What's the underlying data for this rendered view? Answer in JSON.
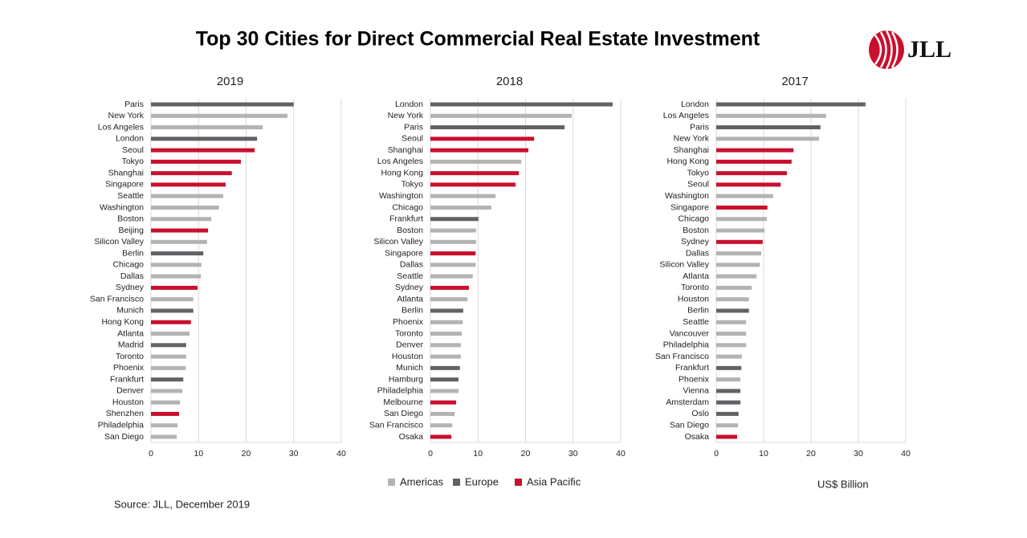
{
  "title": "Top 30 Cities for Direct Commercial Real Estate Investment",
  "logo": "JLL",
  "source": "Source: JLL, December 2019",
  "unit_label": "US$ Billion",
  "legend": [
    {
      "name": "Americas",
      "color": "#b3b3b3"
    },
    {
      "name": "Europe",
      "color": "#616265"
    },
    {
      "name": "Asia Pacific",
      "color": "#c8102e"
    }
  ],
  "chart_data": [
    {
      "type": "bar",
      "orientation": "horizontal",
      "title": "2019",
      "categories": [
        "Paris",
        "New York",
        "Los Angeles",
        "London",
        "Seoul",
        "Tokyo",
        "Shanghai",
        "Singapore",
        "Seattle",
        "Washington",
        "Boston",
        "Beijing",
        "Silicon Valley",
        "Berlin",
        "Chicago",
        "Dallas",
        "Sydney",
        "San Francisco",
        "Munich",
        "Hong Kong",
        "Atlanta",
        "Madrid",
        "Toronto",
        "Phoenix",
        "Frankfurt",
        "Denver",
        "Houston",
        "Shenzhen",
        "Philadelphia",
        "San Diego"
      ],
      "values": [
        30.0,
        28.7,
        23.5,
        22.3,
        21.8,
        18.9,
        17.0,
        15.7,
        15.2,
        14.3,
        12.7,
        12.0,
        11.8,
        11.0,
        10.6,
        10.5,
        9.8,
        8.9,
        8.9,
        8.4,
        8.1,
        7.4,
        7.4,
        7.3,
        6.8,
        6.6,
        6.1,
        5.9,
        5.6,
        5.4
      ],
      "colors": [
        "#616265",
        "#b3b3b3",
        "#b3b3b3",
        "#616265",
        "#c8102e",
        "#c8102e",
        "#c8102e",
        "#c8102e",
        "#b3b3b3",
        "#b3b3b3",
        "#b3b3b3",
        "#c8102e",
        "#b3b3b3",
        "#616265",
        "#b3b3b3",
        "#b3b3b3",
        "#c8102e",
        "#b3b3b3",
        "#616265",
        "#c8102e",
        "#b3b3b3",
        "#616265",
        "#b3b3b3",
        "#b3b3b3",
        "#616265",
        "#b3b3b3",
        "#b3b3b3",
        "#c8102e",
        "#b3b3b3",
        "#b3b3b3"
      ],
      "xlim": [
        0,
        40
      ],
      "xticks": [
        0,
        10,
        20,
        30,
        40
      ],
      "grid": true
    },
    {
      "type": "bar",
      "orientation": "horizontal",
      "title": "2018",
      "categories": [
        "London",
        "New York",
        "Paris",
        "Seoul",
        "Shanghai",
        "Los Angeles",
        "Hong Kong",
        "Tokyo",
        "Washington",
        "Chicago",
        "Frankfurt",
        "Boston",
        "Silicon Valley",
        "Singapore",
        "Dallas",
        "Seattle",
        "Sydney",
        "Atlanta",
        "Berlin",
        "Phoenix",
        "Toronto",
        "Denver",
        "Houston",
        "Munich",
        "Hamburg",
        "Philadelphia",
        "Melbourne",
        "San Diego",
        "San Francisco",
        "Osaka"
      ],
      "values": [
        38.3,
        29.7,
        28.2,
        21.8,
        20.6,
        19.1,
        18.6,
        17.9,
        13.7,
        12.8,
        10.1,
        9.6,
        9.6,
        9.5,
        9.5,
        8.9,
        8.1,
        7.8,
        6.9,
        6.8,
        6.6,
        6.4,
        6.4,
        6.2,
        5.9,
        5.9,
        5.4,
        5.1,
        4.6,
        4.4
      ],
      "colors": [
        "#616265",
        "#b3b3b3",
        "#616265",
        "#c8102e",
        "#c8102e",
        "#b3b3b3",
        "#c8102e",
        "#c8102e",
        "#b3b3b3",
        "#b3b3b3",
        "#616265",
        "#b3b3b3",
        "#b3b3b3",
        "#c8102e",
        "#b3b3b3",
        "#b3b3b3",
        "#c8102e",
        "#b3b3b3",
        "#616265",
        "#b3b3b3",
        "#b3b3b3",
        "#b3b3b3",
        "#b3b3b3",
        "#616265",
        "#616265",
        "#b3b3b3",
        "#c8102e",
        "#b3b3b3",
        "#b3b3b3",
        "#c8102e"
      ],
      "xlim": [
        0,
        40
      ],
      "xticks": [
        0,
        10,
        20,
        30,
        40
      ],
      "grid": true
    },
    {
      "type": "bar",
      "orientation": "horizontal",
      "title": "2017",
      "categories": [
        "London",
        "Los Angeles",
        "Paris",
        "New York",
        "Shanghai",
        "Hong Kong",
        "Tokyo",
        "Seoul",
        "Washington",
        "Singapore",
        "Chicago",
        "Boston",
        "Sydney",
        "Dallas",
        "Silicon Valley",
        "Atlanta",
        "Toronto",
        "Houston",
        "Berlin",
        "Seattle",
        "Vancouver",
        "Philadelphia",
        "San Francisco",
        "Frankfurt",
        "Phoenix",
        "Vienna",
        "Amsterdam",
        "Oslo",
        "San Diego",
        "Osaka"
      ],
      "values": [
        31.5,
        23.2,
        22.0,
        21.7,
        16.3,
        15.9,
        14.9,
        13.6,
        12.0,
        10.8,
        10.7,
        10.2,
        9.8,
        9.5,
        9.2,
        8.5,
        7.5,
        6.9,
        6.9,
        6.3,
        6.3,
        6.3,
        5.4,
        5.3,
        5.1,
        5.1,
        5.1,
        4.7,
        4.6,
        4.4
      ],
      "colors": [
        "#616265",
        "#b3b3b3",
        "#616265",
        "#b3b3b3",
        "#c8102e",
        "#c8102e",
        "#c8102e",
        "#c8102e",
        "#b3b3b3",
        "#c8102e",
        "#b3b3b3",
        "#b3b3b3",
        "#c8102e",
        "#b3b3b3",
        "#b3b3b3",
        "#b3b3b3",
        "#b3b3b3",
        "#b3b3b3",
        "#616265",
        "#b3b3b3",
        "#b3b3b3",
        "#b3b3b3",
        "#b3b3b3",
        "#616265",
        "#b3b3b3",
        "#616265",
        "#616265",
        "#616265",
        "#b3b3b3",
        "#c8102e"
      ],
      "xlim": [
        0,
        40
      ],
      "xticks": [
        0,
        10,
        20,
        30,
        40
      ],
      "grid": true
    }
  ]
}
